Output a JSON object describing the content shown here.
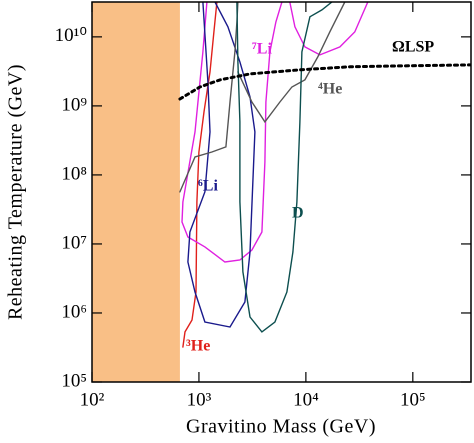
{
  "chart_data": {
    "type": "line",
    "xlabel": "Gravitino Mass (GeV)",
    "ylabel": "Reheating Temperature (GeV)",
    "log_x": true,
    "log_y": true,
    "xlim": [
      100,
      350000
    ],
    "ylim": [
      100000,
      32000000000
    ],
    "xticks": [
      {
        "value": 100,
        "label": "10²"
      },
      {
        "value": 1000,
        "label": "10³"
      },
      {
        "value": 10000,
        "label": "10⁴"
      },
      {
        "value": 100000,
        "label": "10⁵"
      }
    ],
    "yticks": [
      {
        "value": 100000,
        "label": "10⁵"
      },
      {
        "value": 1000000,
        "label": "10⁶"
      },
      {
        "value": 10000000,
        "label": "10⁷"
      },
      {
        "value": 100000000,
        "label": "10⁸"
      },
      {
        "value": 1000000000,
        "label": "10⁹"
      },
      {
        "value": 10000000000,
        "label": "10¹⁰"
      }
    ],
    "shaded_region": {
      "xrange": [
        100,
        664
      ],
      "color": "#f9bf86"
    },
    "series": [
      {
        "name": "³He",
        "color": "#e0201b",
        "dash": false,
        "x": [
          708,
          740,
          861,
          938,
          958,
          1000,
          1114,
          1268,
          1380,
          1472
        ],
        "y": [
          321000,
          531000,
          792000,
          2010000,
          40600000,
          215000000,
          818000000,
          3110000000,
          11800000000,
          32000000000
        ]
      },
      {
        "name": "⁷Li",
        "color": "#e020e0",
        "dash": false,
        "x": [
          1188,
          1089,
          918,
          708,
          694,
          789,
          1138,
          1750,
          2415,
          3126,
          3882,
          4140,
          4227,
          4613,
          5248,
          5970,
          null,
          7080,
          7889,
          9795,
          13520,
          20800,
          28700,
          37960
        ],
        "y": [
          32000000000,
          6070000000,
          420000000,
          40600000,
          20800000,
          12600000,
          9050000,
          5480000,
          5860000,
          8180000,
          14900000,
          154000000,
          1140000000,
          6070000000,
          16500000000,
          32000000000,
          null,
          32000000000,
          14000000000,
          7160000000,
          5480000000,
          7160000000,
          11800000000,
          32000000000
        ]
      },
      {
        "name": "⁶Li",
        "color": "#1a1a8c",
        "dash": false,
        "x": [
          1089,
          1213,
          1268,
          1138,
          824,
          789,
          918,
          1138,
          1950,
          2692,
          3000,
          3337,
          3000,
          2415,
          1867,
          1412
        ],
        "y": [
          32000000000,
          2230000000,
          420000000,
          56700000,
          14900000,
          5480000,
          2010000,
          741000,
          627000,
          1440000,
          7650000,
          420000000,
          1350000000,
          4340000000,
          14000000000,
          32000000000
        ]
      },
      {
        "name": "⁴He",
        "color": "#555555",
        "dash": false,
        "x": [
          664,
          918,
          1322,
          1787,
          1950,
          2168,
          2265,
          2312,
          null,
          2312,
          3126,
          4140,
          5715,
          7393,
          9795,
          12940,
          16750,
          23120
        ],
        "y": [
          56700000,
          182000000,
          215000000,
          255000000,
          1140000000,
          6070000000,
          16500000000,
          32000000000,
          null,
          3110000000,
          1140000000,
          586000000,
          1140000000,
          1880000000,
          2380000000,
          5130000000,
          11800000000,
          32000000000
        ]
      },
      {
        "name": "D",
        "color": "#0d4f4f",
        "dash": false,
        "x": [
          2265,
          2312,
          2415,
          2415,
          2576,
          3000,
          3882,
          5129,
          6640,
          7568,
          8241,
          8790,
          9185,
          10900,
          14120,
          17500
        ],
        "y": [
          32000000000,
          4340000000,
          586000000,
          40600000,
          3930000,
          875000,
          531000,
          741000,
          2010000,
          7650000,
          40600000,
          586000000,
          6070000000,
          19500000000,
          24600000000,
          32000000000
        ]
      },
      {
        "name": "ΩLSP",
        "color": "#000000",
        "dash": true,
        "x": [
          664,
          1021,
          1572,
          3000,
          8790,
          25760,
          75700,
          341000
        ],
        "y": [
          1260000000,
          1880000000,
          2380000000,
          2910000000,
          3330000000,
          3680000000,
          3800000000,
          3930000000
        ]
      }
    ]
  }
}
